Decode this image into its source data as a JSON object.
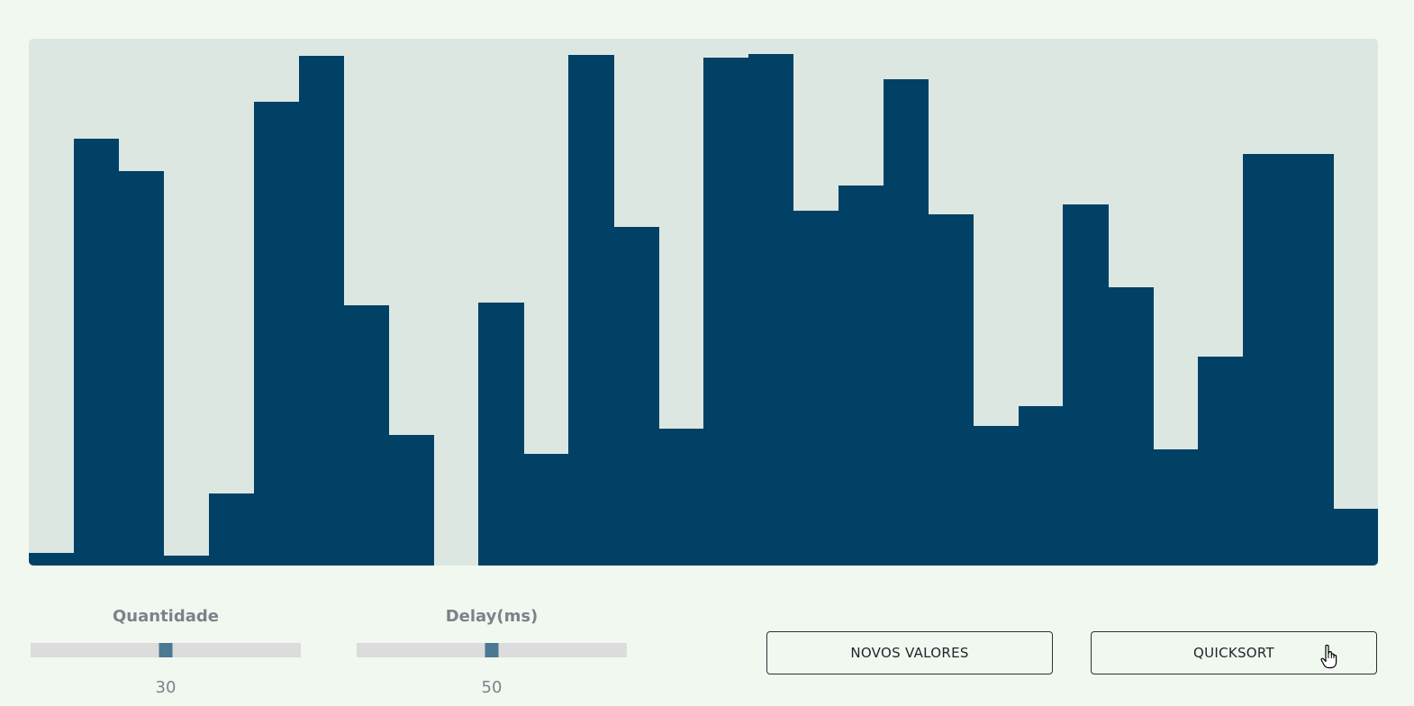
{
  "colors": {
    "background": "#f1f8f0",
    "panel": "#dce7e2",
    "bar": "#014166",
    "slider_track": "#dcdcdc",
    "slider_thumb": "#4b7893"
  },
  "chart_data": {
    "type": "bar",
    "values": [
      2.4,
      82.0,
      75.8,
      1.9,
      13.8,
      89.1,
      98.0,
      50.0,
      25.1,
      0.0,
      50.5,
      21.5,
      98.1,
      65.1,
      26.3,
      97.6,
      98.3,
      68.1,
      73.0,
      93.4,
      67.4,
      26.8,
      30.7,
      69.3,
      53.5,
      22.3,
      40.1,
      79.1,
      79.1,
      10.9
    ],
    "ylim": [
      0,
      100
    ]
  },
  "controls": {
    "quantity": {
      "label": "Quantidade",
      "value": "30",
      "level": 0.5
    },
    "delay": {
      "label": "Delay(ms)",
      "value": "50",
      "level": 0.5
    }
  },
  "buttons": {
    "new_values": "NOVOS VALORES",
    "quicksort": "QUICKSORT"
  },
  "cursor_icon": "hand-pointer-icon"
}
